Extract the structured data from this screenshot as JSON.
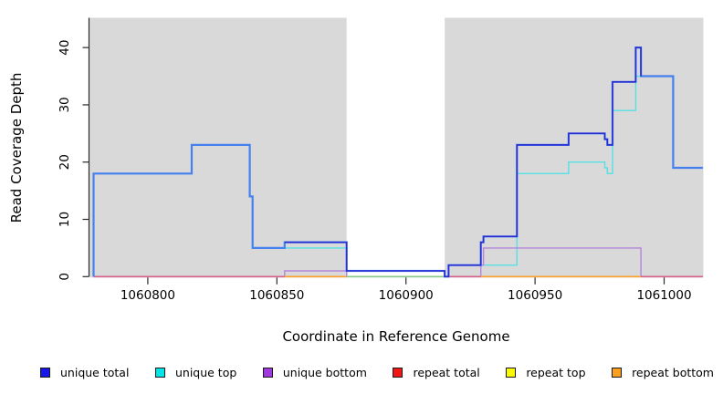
{
  "chart_data": {
    "type": "line",
    "subtype": "step-coverage-plot",
    "title": "",
    "xlabel": "Coordinate in Reference Genome",
    "ylabel": "Read Coverage Depth",
    "xlim": [
      1060777.4,
      1061015.2
    ],
    "ylim": [
      0,
      45.2
    ],
    "x_ticks": [
      1060800,
      1060850,
      1060900,
      1060950,
      1061000
    ],
    "y_ticks": [
      0,
      10,
      20,
      30,
      40
    ],
    "grid": false,
    "plot_bg_color": "#d9d9d9",
    "axis_color": "#2a2a2a",
    "uncovered_band": {
      "from": 1060877,
      "to": 1060915,
      "color": "#ffffff"
    },
    "series": [
      {
        "name": "unique top",
        "color": "#55e0e4",
        "width": 1.4,
        "layer": "under",
        "points": [
          [
            1060853,
            5
          ],
          [
            1060877,
            5
          ],
          [
            1060877,
            0
          ],
          [
            1060916.5,
            0
          ],
          [
            1060916.5,
            2
          ],
          [
            1060943,
            2
          ],
          [
            1060943,
            18
          ],
          [
            1060963,
            18
          ],
          [
            1060963,
            20
          ],
          [
            1060977,
            20
          ],
          [
            1060977,
            19
          ],
          [
            1060978,
            19
          ],
          [
            1060978,
            18
          ],
          [
            1060980,
            18
          ],
          [
            1060980,
            29
          ],
          [
            1060989,
            29
          ],
          [
            1060989,
            35
          ],
          [
            1061003.5,
            35
          ],
          [
            1061003.5,
            19
          ],
          [
            1061015,
            19
          ]
        ]
      },
      {
        "name": "unique bottom",
        "color": "#b286dc",
        "width": 1.4,
        "layer": "under",
        "points": [
          [
            1060779,
            0
          ],
          [
            1060853,
            0
          ],
          [
            1060853,
            1
          ],
          [
            1060877,
            1
          ],
          [
            1060877,
            0
          ],
          [
            1060929,
            0
          ],
          [
            1060929,
            2
          ],
          [
            1060930,
            2
          ],
          [
            1060930,
            5
          ],
          [
            1060991,
            5
          ],
          [
            1060991,
            0
          ],
          [
            1061015,
            0
          ]
        ]
      },
      {
        "name": "total",
        "color": "#4480f0",
        "width": 2.2,
        "layer": "over",
        "points": [
          [
            1060779,
            0
          ],
          [
            1060779,
            18
          ],
          [
            1060817,
            18
          ],
          [
            1060817,
            23
          ],
          [
            1060839.5,
            23
          ],
          [
            1060839.5,
            14
          ],
          [
            1060840.6,
            14
          ],
          [
            1060840.6,
            5
          ],
          [
            1060853,
            5
          ],
          [
            1060853,
            6
          ],
          [
            1060877,
            6
          ],
          [
            1060877,
            1
          ],
          [
            1060915,
            1
          ],
          [
            1060915,
            0
          ],
          [
            1060916.5,
            0
          ],
          [
            1060916.5,
            2
          ],
          [
            1060929,
            2
          ],
          [
            1060929,
            6
          ],
          [
            1060930,
            6
          ],
          [
            1060930,
            7
          ],
          [
            1060943,
            7
          ],
          [
            1060943,
            23
          ],
          [
            1060963,
            23
          ],
          [
            1060963,
            25
          ],
          [
            1060977,
            25
          ],
          [
            1060977,
            24
          ],
          [
            1060978,
            24
          ],
          [
            1060978,
            23
          ],
          [
            1060980,
            23
          ],
          [
            1060980,
            34
          ],
          [
            1060989,
            34
          ],
          [
            1060989,
            40
          ],
          [
            1060991,
            40
          ],
          [
            1060991,
            35
          ],
          [
            1061003.5,
            35
          ],
          [
            1061003.5,
            19
          ],
          [
            1061015,
            19
          ]
        ]
      },
      {
        "name": "unique total",
        "color": "#2a2ad0",
        "width": 1.5,
        "layer": "over",
        "points": [
          [
            1060853,
            6
          ],
          [
            1060877,
            6
          ],
          [
            1060877,
            1
          ],
          [
            1060915,
            1
          ],
          [
            1060915,
            0
          ],
          [
            1060916.5,
            0
          ],
          [
            1060916.5,
            2
          ],
          [
            1060929,
            2
          ],
          [
            1060929,
            6
          ],
          [
            1060930,
            6
          ],
          [
            1060930,
            7
          ],
          [
            1060943,
            7
          ],
          [
            1060943,
            23
          ],
          [
            1060963,
            23
          ],
          [
            1060963,
            25
          ],
          [
            1060977,
            25
          ],
          [
            1060977,
            24
          ],
          [
            1060978,
            24
          ],
          [
            1060978,
            23
          ],
          [
            1060980,
            23
          ],
          [
            1060980,
            34
          ],
          [
            1060989,
            34
          ],
          [
            1060989,
            40
          ],
          [
            1060991,
            40
          ],
          [
            1060991,
            35
          ]
        ]
      }
    ],
    "baseline_segments": [
      {
        "from": 1060779,
        "to": 1060853,
        "value": 0,
        "color": "#d6608a"
      },
      {
        "from": 1060853,
        "to": 1060877,
        "value": 0,
        "color": "#ffa128"
      },
      {
        "from": 1060877,
        "to": 1060915,
        "value": 0,
        "color": "#85c985"
      },
      {
        "from": 1060915,
        "to": 1060929,
        "value": 0,
        "color": "#d6608a"
      },
      {
        "from": 1060929,
        "to": 1060991,
        "value": 0,
        "color": "#ffa128"
      },
      {
        "from": 1060991,
        "to": 1061015,
        "value": 0,
        "color": "#d6608a"
      }
    ],
    "legend": [
      {
        "label": "unique total",
        "color": "#1717e8"
      },
      {
        "label": "unique top",
        "color": "#00e5e5"
      },
      {
        "label": "unique bottom",
        "color": "#a238e0"
      },
      {
        "label": "repeat total",
        "color": "#f21717"
      },
      {
        "label": "repeat top",
        "color": "#fafa00"
      },
      {
        "label": "repeat bottom",
        "color": "#faa01e"
      }
    ],
    "legend_position": "bottom"
  }
}
